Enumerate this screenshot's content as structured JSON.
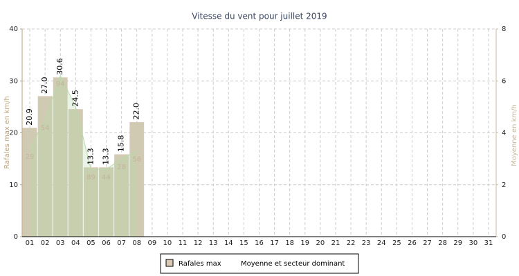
{
  "chart_data": {
    "type": "bar",
    "title": "Vitesse du vent pour juillet 2019",
    "y_label": "Rafales max en km/h",
    "y2_label": "Moyenne en km/h",
    "categories": [
      "01",
      "02",
      "03",
      "04",
      "05",
      "06",
      "07",
      "08",
      "09",
      "10",
      "11",
      "12",
      "13",
      "14",
      "15",
      "16",
      "17",
      "18",
      "19",
      "20",
      "21",
      "22",
      "23",
      "24",
      "25",
      "26",
      "27",
      "28",
      "29",
      "30",
      "31"
    ],
    "series": [
      {
        "name": "Rafales max",
        "color": "#cfcab1",
        "values": [
          20.9,
          27.0,
          30.6,
          24.5,
          13.3,
          13.3,
          15.8,
          22.0,
          null,
          null,
          null,
          null,
          null,
          null,
          null,
          null,
          null,
          null,
          null,
          null,
          null,
          null,
          null,
          null,
          null,
          null,
          null,
          null,
          null,
          null,
          null
        ],
        "value_labels": [
          "20.9",
          "27.0",
          "30.6",
          "24.5",
          "13.3",
          "13.3",
          "15.8",
          "22.0",
          null,
          null,
          null,
          null,
          null,
          null,
          null,
          null,
          null,
          null,
          null,
          null,
          null,
          null,
          null,
          null,
          null,
          null,
          null,
          null,
          null,
          null,
          null
        ]
      },
      {
        "name": "Moyenne et secteur dominant",
        "color": "#b9d9ab",
        "axis": "y2",
        "values": [
          3.4,
          4.5,
          6.2,
          5.0,
          2.6,
          2.6,
          3.0,
          3.3,
          null,
          null,
          null,
          null,
          null,
          null,
          null,
          null,
          null,
          null,
          null,
          null,
          null,
          null,
          null,
          null,
          null,
          null,
          null,
          null,
          null,
          null,
          null
        ],
        "sector_labels": [
          "29",
          "54",
          "94",
          null,
          "89",
          "44",
          "28",
          "56",
          null,
          null,
          null,
          null,
          null,
          null,
          null,
          null,
          null,
          null,
          null,
          null,
          null,
          null,
          null,
          null,
          null,
          null,
          null,
          null,
          null,
          null,
          null
        ]
      }
    ],
    "ylim": [
      0,
      40
    ],
    "yticks": [
      0,
      10,
      20,
      30,
      40
    ],
    "y2lim": [
      0,
      8
    ],
    "y2ticks": [
      0,
      2,
      4,
      6,
      8
    ],
    "grid": true
  }
}
